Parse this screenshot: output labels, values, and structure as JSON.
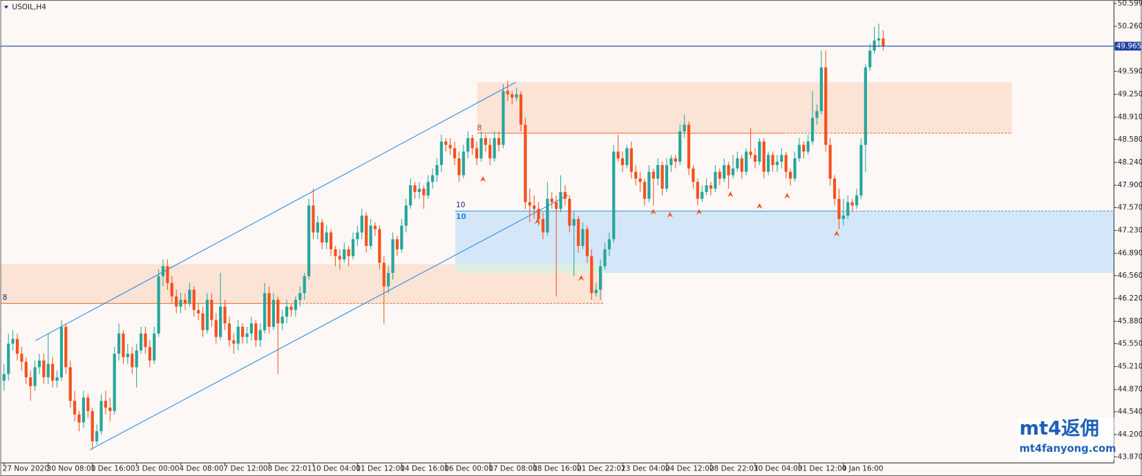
{
  "chart_data": {
    "type": "candlestick",
    "title": "USOIL,H4",
    "up_color": "#26a69a",
    "down_color": "#f4511e",
    "ylim": [
      43.78,
      50.65
    ],
    "yticks": [
      50.599,
      {
        "value": 50.26,
        "label": "50.260"
      },
      {
        "value": 49.59,
        "label": "49.590"
      },
      {
        "value": 49.25,
        "label": "49.250"
      },
      {
        "value": 48.91,
        "label": "48.910"
      },
      {
        "value": 48.58,
        "label": "48.580"
      },
      {
        "value": 48.24,
        "label": "48.240"
      },
      {
        "value": 47.9,
        "label": "47.900"
      },
      {
        "value": 47.57,
        "label": "47.570"
      },
      {
        "value": 47.23,
        "label": "47.230"
      },
      {
        "value": 46.89,
        "label": "46.890"
      },
      {
        "value": 46.56,
        "label": "46.560"
      },
      {
        "value": 46.22,
        "label": "46.220"
      },
      {
        "value": 45.88,
        "label": "45.880"
      },
      {
        "value": 45.55,
        "label": "45.550"
      },
      {
        "value": 45.21,
        "label": "45.210"
      },
      {
        "value": 44.87,
        "label": "44.870"
      },
      {
        "value": 44.54,
        "label": "44.540"
      },
      {
        "value": 44.2,
        "label": "44.200"
      },
      {
        "value": 43.87,
        "label": "43.870"
      }
    ],
    "last_price": 49.965,
    "annotations": [
      "8",
      "8",
      "10",
      "10"
    ],
    "watermark": [
      "mt4返佣",
      "mt4fanyong.com"
    ],
    "categories": [
      "27 Nov 2020",
      null,
      null,
      null,
      null,
      null,
      null,
      null,
      null,
      null,
      "30 Nov 08:00",
      null,
      null,
      null,
      null,
      null,
      null,
      null,
      null,
      null,
      "1 Dec 16:00",
      null,
      null,
      null,
      null,
      null,
      null,
      null,
      null,
      null,
      "3 Dec 00:00",
      null,
      null,
      null,
      null,
      null,
      null,
      null,
      null,
      null,
      "4 Dec 08:00",
      null,
      null,
      null,
      null,
      null,
      null,
      null,
      null,
      null,
      "7 Dec 12:00",
      null,
      null,
      null,
      null,
      null,
      null,
      null,
      null,
      null,
      "8 Dec 22:01",
      null,
      null,
      null,
      null,
      null,
      null,
      null,
      null,
      null,
      "10 Dec 04:00",
      null,
      null,
      null,
      null,
      null,
      null,
      null,
      null,
      null,
      "11 Dec 12:00",
      null,
      null,
      null,
      null,
      null,
      null,
      null,
      null,
      null,
      "14 Dec 16:00",
      null,
      null,
      null,
      null,
      null,
      null,
      null,
      null,
      null,
      "16 Dec 00:00",
      null,
      null,
      null,
      null,
      null,
      null,
      null,
      null,
      null,
      "17 Dec 08:00",
      null,
      null,
      null,
      null,
      null,
      null,
      null,
      null,
      null,
      "18 Dec 16:00",
      null,
      null,
      null,
      null,
      null,
      null,
      null,
      null,
      null,
      "21 Dec 22:01",
      null,
      null,
      null,
      null,
      null,
      null,
      null,
      null,
      null,
      "23 Dec 04:00",
      null,
      null,
      null,
      null,
      null,
      null,
      null,
      null,
      null,
      "24 Dec 12:00",
      null,
      null,
      null,
      null,
      null,
      null,
      null,
      null,
      null,
      "28 Dec 22:01",
      null,
      null,
      null,
      null,
      null,
      null,
      null,
      null,
      null,
      "30 Dec 04:00",
      null,
      null,
      null,
      null,
      null,
      null,
      null,
      null,
      null,
      "31 Dec 12:00",
      null,
      null,
      null,
      null,
      null,
      null,
      null,
      null,
      null,
      "4 Jan 16:00",
      null,
      null,
      null,
      null,
      null,
      null,
      null,
      null,
      null
    ],
    "ohlc": [
      [
        45.0,
        45.25,
        44.85,
        45.1
      ],
      [
        45.1,
        45.7,
        45.0,
        45.55
      ],
      [
        45.55,
        45.75,
        45.45,
        45.62
      ],
      [
        45.62,
        45.7,
        45.3,
        45.4
      ],
      [
        45.4,
        45.5,
        45.15,
        45.28
      ],
      [
        45.28,
        45.35,
        44.95,
        45.05
      ],
      [
        45.05,
        45.15,
        44.7,
        44.92
      ],
      [
        44.92,
        45.3,
        44.85,
        45.2
      ],
      [
        45.2,
        45.4,
        45.1,
        45.3
      ],
      [
        45.3,
        45.4,
        44.95,
        45.05
      ],
      [
        45.05,
        45.7,
        44.95,
        45.25
      ],
      [
        45.25,
        45.35,
        44.9,
        45.0
      ],
      [
        45.0,
        45.15,
        44.9,
        45.05
      ],
      [
        45.05,
        45.9,
        45.0,
        45.8
      ],
      [
        45.8,
        45.85,
        45.1,
        45.2
      ],
      [
        45.2,
        45.3,
        44.6,
        44.7
      ],
      [
        44.7,
        44.85,
        44.4,
        44.5
      ],
      [
        44.5,
        44.55,
        44.25,
        44.38
      ],
      [
        44.38,
        44.85,
        44.3,
        44.75
      ],
      [
        44.75,
        44.8,
        44.45,
        44.55
      ],
      [
        44.55,
        44.6,
        43.98,
        44.1
      ],
      [
        44.1,
        44.35,
        44.05,
        44.25
      ],
      [
        44.25,
        44.8,
        44.2,
        44.7
      ],
      [
        44.7,
        44.85,
        44.5,
        44.6
      ],
      [
        44.6,
        44.75,
        44.4,
        44.55
      ],
      [
        44.55,
        45.5,
        44.5,
        45.4
      ],
      [
        45.4,
        45.85,
        45.3,
        45.7
      ],
      [
        45.7,
        45.75,
        45.25,
        45.35
      ],
      [
        45.35,
        45.55,
        45.25,
        45.4
      ],
      [
        45.4,
        45.5,
        45.1,
        45.2
      ],
      [
        45.2,
        45.55,
        44.9,
        45.45
      ],
      [
        45.45,
        45.8,
        45.4,
        45.7
      ],
      [
        45.7,
        45.8,
        45.4,
        45.5
      ],
      [
        45.5,
        45.6,
        45.2,
        45.3
      ],
      [
        45.3,
        45.8,
        45.25,
        45.7
      ],
      [
        45.7,
        46.65,
        45.65,
        46.55
      ],
      [
        46.55,
        46.8,
        46.4,
        46.7
      ],
      [
        46.7,
        46.8,
        46.35,
        46.45
      ],
      [
        46.45,
        46.55,
        46.15,
        46.25
      ],
      [
        46.25,
        46.35,
        46.0,
        46.1
      ],
      [
        46.1,
        46.3,
        46.0,
        46.2
      ],
      [
        46.2,
        46.3,
        46.05,
        46.15
      ],
      [
        46.15,
        46.45,
        46.1,
        46.35
      ],
      [
        46.35,
        46.4,
        45.95,
        46.05
      ],
      [
        46.05,
        46.15,
        45.9,
        46.0
      ],
      [
        46.0,
        46.1,
        45.65,
        45.75
      ],
      [
        45.75,
        46.3,
        45.7,
        46.2
      ],
      [
        46.2,
        46.3,
        45.8,
        45.9
      ],
      [
        45.9,
        46.0,
        45.55,
        45.65
      ],
      [
        45.65,
        46.6,
        45.6,
        46.1
      ],
      [
        46.1,
        46.2,
        45.75,
        45.85
      ],
      [
        45.85,
        45.95,
        45.5,
        45.6
      ],
      [
        45.6,
        45.7,
        45.4,
        45.55
      ],
      [
        45.55,
        45.9,
        45.45,
        45.8
      ],
      [
        45.8,
        45.85,
        45.55,
        45.65
      ],
      [
        45.65,
        45.8,
        45.55,
        45.7
      ],
      [
        45.7,
        45.95,
        45.6,
        45.85
      ],
      [
        45.85,
        45.9,
        45.5,
        45.6
      ],
      [
        45.6,
        45.85,
        45.5,
        45.75
      ],
      [
        45.75,
        46.45,
        45.7,
        46.3
      ],
      [
        46.3,
        46.4,
        45.7,
        45.8
      ],
      [
        45.8,
        46.3,
        45.75,
        46.2
      ],
      [
        46.2,
        46.25,
        45.1,
        45.85
      ],
      [
        45.85,
        46.05,
        45.75,
        45.95
      ],
      [
        45.95,
        46.2,
        45.85,
        46.1
      ],
      [
        46.1,
        46.15,
        45.95,
        46.05
      ],
      [
        46.05,
        46.25,
        45.95,
        46.2
      ],
      [
        46.2,
        46.4,
        46.1,
        46.3
      ],
      [
        46.3,
        46.6,
        46.2,
        46.55
      ],
      [
        46.55,
        47.7,
        46.5,
        47.6
      ],
      [
        47.6,
        47.85,
        47.1,
        47.2
      ],
      [
        47.2,
        47.45,
        47.1,
        47.35
      ],
      [
        47.35,
        47.4,
        46.95,
        47.05
      ],
      [
        47.05,
        47.3,
        46.95,
        47.2
      ],
      [
        47.2,
        47.25,
        46.85,
        46.95
      ],
      [
        46.95,
        47.0,
        46.7,
        46.85
      ],
      [
        46.85,
        46.95,
        46.65,
        46.8
      ],
      [
        46.8,
        47.05,
        46.75,
        46.95
      ],
      [
        46.95,
        47.0,
        46.7,
        46.85
      ],
      [
        46.85,
        47.2,
        46.8,
        47.1
      ],
      [
        47.1,
        47.3,
        47.0,
        47.2
      ],
      [
        47.2,
        47.55,
        47.1,
        47.45
      ],
      [
        47.45,
        47.5,
        46.9,
        47.0
      ],
      [
        47.0,
        47.4,
        46.95,
        47.3
      ],
      [
        47.3,
        47.35,
        47.15,
        47.25
      ],
      [
        47.25,
        47.3,
        46.65,
        46.75
      ],
      [
        46.75,
        46.85,
        45.85,
        46.4
      ],
      [
        46.4,
        46.7,
        46.3,
        46.6
      ],
      [
        46.6,
        47.2,
        46.5,
        47.1
      ],
      [
        47.1,
        47.15,
        46.85,
        46.95
      ],
      [
        46.95,
        47.4,
        46.9,
        47.3
      ],
      [
        47.3,
        47.7,
        47.2,
        47.6
      ],
      [
        47.6,
        48.0,
        47.55,
        47.9
      ],
      [
        47.9,
        47.95,
        47.7,
        47.8
      ],
      [
        47.8,
        47.95,
        47.7,
        47.85
      ],
      [
        47.85,
        47.9,
        47.55,
        47.75
      ],
      [
        47.75,
        48.05,
        47.7,
        47.95
      ],
      [
        47.95,
        48.15,
        47.85,
        48.05
      ],
      [
        48.05,
        48.3,
        47.95,
        48.2
      ],
      [
        48.2,
        48.65,
        48.1,
        48.55
      ],
      [
        48.55,
        48.6,
        48.4,
        48.5
      ],
      [
        48.5,
        48.6,
        48.35,
        48.45
      ],
      [
        48.45,
        48.55,
        48.2,
        48.3
      ],
      [
        48.3,
        48.4,
        47.95,
        48.05
      ],
      [
        48.05,
        48.5,
        48.0,
        48.4
      ],
      [
        48.4,
        48.7,
        48.3,
        48.6
      ],
      [
        48.6,
        48.65,
        48.35,
        48.45
      ],
      [
        48.45,
        48.55,
        48.2,
        48.3
      ],
      [
        48.3,
        48.7,
        48.25,
        48.6
      ],
      [
        48.6,
        48.65,
        48.4,
        48.5
      ],
      [
        48.5,
        48.6,
        48.2,
        48.3
      ],
      [
        48.3,
        48.7,
        48.25,
        48.6
      ],
      [
        48.6,
        48.7,
        48.4,
        48.5
      ],
      [
        48.5,
        49.4,
        48.45,
        49.3
      ],
      [
        49.3,
        49.45,
        49.15,
        49.25
      ],
      [
        49.25,
        49.3,
        49.1,
        49.2
      ],
      [
        49.2,
        49.35,
        49.15,
        49.25
      ],
      [
        49.25,
        49.3,
        48.7,
        48.8
      ],
      [
        48.8,
        48.9,
        47.55,
        47.65
      ],
      [
        47.65,
        47.85,
        47.35,
        47.6
      ],
      [
        47.6,
        47.75,
        47.4,
        47.55
      ],
      [
        47.55,
        47.65,
        47.3,
        47.4
      ],
      [
        47.4,
        47.5,
        47.1,
        47.2
      ],
      [
        47.2,
        47.95,
        47.15,
        47.7
      ],
      [
        47.7,
        47.8,
        47.55,
        47.65
      ],
      [
        47.65,
        47.75,
        46.25,
        47.55
      ],
      [
        47.55,
        48.05,
        47.5,
        47.8
      ],
      [
        47.8,
        47.9,
        47.6,
        47.7
      ],
      [
        47.7,
        47.75,
        47.2,
        47.3
      ],
      [
        47.3,
        47.5,
        46.55,
        47.4
      ],
      [
        47.4,
        47.45,
        46.9,
        47.0
      ],
      [
        47.0,
        47.35,
        46.95,
        47.25
      ],
      [
        47.25,
        47.3,
        46.75,
        46.85
      ],
      [
        46.85,
        46.95,
        46.2,
        46.3
      ],
      [
        46.3,
        46.45,
        46.25,
        46.35
      ],
      [
        46.35,
        46.8,
        46.2,
        46.7
      ],
      [
        46.7,
        47.05,
        46.65,
        46.95
      ],
      [
        46.95,
        47.2,
        46.85,
        47.1
      ],
      [
        47.1,
        48.5,
        47.05,
        48.4
      ],
      [
        48.4,
        48.65,
        48.25,
        48.3
      ],
      [
        48.3,
        48.4,
        48.1,
        48.2
      ],
      [
        48.2,
        48.5,
        48.15,
        48.45
      ],
      [
        48.45,
        48.55,
        48.0,
        48.1
      ],
      [
        48.1,
        48.2,
        47.9,
        48.0
      ],
      [
        48.0,
        48.1,
        47.8,
        47.95
      ],
      [
        47.95,
        48.0,
        47.6,
        47.7
      ],
      [
        47.7,
        48.2,
        47.65,
        48.1
      ],
      [
        48.1,
        48.15,
        47.6,
        48.0
      ],
      [
        48.0,
        48.3,
        47.9,
        48.2
      ],
      [
        48.2,
        48.25,
        47.75,
        47.85
      ],
      [
        47.85,
        48.3,
        47.8,
        48.2
      ],
      [
        48.2,
        48.35,
        48.1,
        48.3
      ],
      [
        48.3,
        48.35,
        48.15,
        48.25
      ],
      [
        48.25,
        48.8,
        48.2,
        48.7
      ],
      [
        48.7,
        48.95,
        48.6,
        48.8
      ],
      [
        48.8,
        48.85,
        48.05,
        48.15
      ],
      [
        48.15,
        48.2,
        47.85,
        47.95
      ],
      [
        47.95,
        48.0,
        47.6,
        47.7
      ],
      [
        47.7,
        47.9,
        47.65,
        47.8
      ],
      [
        47.8,
        48.0,
        47.75,
        47.9
      ],
      [
        47.9,
        47.95,
        47.75,
        47.85
      ],
      [
        47.85,
        48.2,
        47.8,
        48.1
      ],
      [
        48.1,
        48.15,
        47.9,
        48.0
      ],
      [
        48.0,
        48.3,
        47.95,
        48.2
      ],
      [
        48.2,
        48.25,
        47.85,
        48.05
      ],
      [
        48.05,
        48.35,
        48.0,
        48.15
      ],
      [
        48.15,
        48.4,
        48.1,
        48.3
      ],
      [
        48.3,
        48.35,
        48.0,
        48.1
      ],
      [
        48.1,
        48.45,
        48.05,
        48.4
      ],
      [
        48.4,
        48.75,
        48.3,
        48.35
      ],
      [
        48.35,
        48.45,
        48.15,
        48.25
      ],
      [
        48.25,
        48.6,
        48.2,
        48.55
      ],
      [
        48.55,
        48.6,
        48.0,
        48.1
      ],
      [
        48.1,
        48.4,
        48.05,
        48.35
      ],
      [
        48.35,
        48.4,
        48.1,
        48.2
      ],
      [
        48.2,
        48.35,
        48.1,
        48.25
      ],
      [
        48.25,
        48.45,
        48.15,
        48.35
      ],
      [
        48.35,
        48.4,
        48.0,
        48.1
      ],
      [
        48.1,
        48.15,
        47.9,
        48.0
      ],
      [
        48.0,
        48.4,
        47.95,
        48.3
      ],
      [
        48.3,
        48.6,
        48.25,
        48.5
      ],
      [
        48.5,
        48.55,
        48.3,
        48.4
      ],
      [
        48.4,
        48.65,
        48.35,
        48.55
      ],
      [
        48.55,
        49.3,
        48.5,
        48.9
      ],
      [
        48.9,
        49.1,
        48.8,
        49.0
      ],
      [
        49.0,
        49.9,
        48.95,
        49.65
      ],
      [
        49.65,
        49.9,
        48.4,
        48.5
      ],
      [
        48.5,
        48.6,
        47.9,
        48.0
      ],
      [
        48.0,
        48.05,
        47.6,
        47.7
      ],
      [
        47.7,
        47.85,
        47.25,
        47.4
      ],
      [
        47.4,
        47.7,
        47.3,
        47.45
      ],
      [
        47.45,
        47.75,
        47.4,
        47.65
      ],
      [
        47.65,
        47.7,
        47.5,
        47.6
      ],
      [
        47.6,
        47.85,
        47.55,
        47.75
      ],
      [
        47.75,
        48.6,
        47.7,
        48.5
      ],
      [
        48.5,
        49.7,
        48.1,
        49.65
      ],
      [
        49.65,
        50.0,
        49.6,
        49.9
      ],
      [
        49.9,
        50.25,
        49.85,
        50.05
      ],
      [
        50.05,
        50.3,
        49.95,
        50.08
      ],
      [
        50.08,
        50.2,
        49.9,
        49.965
      ]
    ]
  }
}
